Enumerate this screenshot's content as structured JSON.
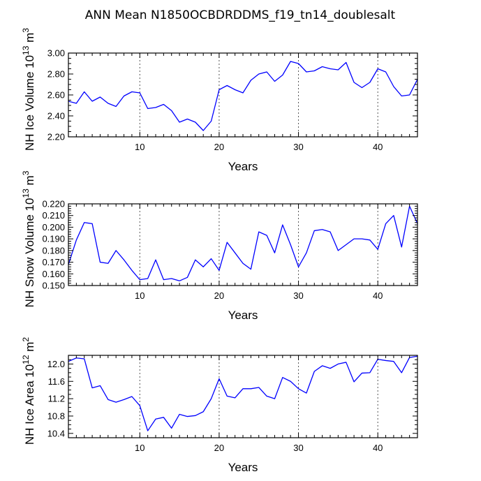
{
  "title": "ANN Mean N1850OCBDRDDMS_f19_tn14_doublesalt",
  "colors": {
    "series": "#0000ff",
    "grid": "#555555"
  },
  "chart_data": [
    {
      "type": "line",
      "title": "",
      "xlabel": "Years",
      "ylabel": "NH Ice Volume 10^13 m^3",
      "ylabel_parts": {
        "text": "NH Ice Volume 10",
        "exp": "13",
        "unit": "m",
        "unit_exp": "3"
      },
      "xlim": [
        1,
        45
      ],
      "ylim": [
        2.2,
        3.0
      ],
      "xticks": [
        10,
        20,
        30,
        40
      ],
      "yticks": [
        2.2,
        2.4,
        2.6,
        2.8,
        3.0
      ],
      "ytick_labels": [
        "2.20",
        "2.40",
        "2.60",
        "2.80",
        "3.00"
      ],
      "y_minor_step": 0.05,
      "grid_x": [
        10,
        20,
        30,
        40
      ],
      "x": [
        1,
        2,
        3,
        4,
        5,
        6,
        7,
        8,
        9,
        10,
        11,
        12,
        13,
        14,
        15,
        16,
        17,
        18,
        19,
        20,
        21,
        22,
        23,
        24,
        25,
        26,
        27,
        28,
        29,
        30,
        31,
        32,
        33,
        34,
        35,
        36,
        37,
        38,
        39,
        40,
        41,
        42,
        43,
        44,
        45
      ],
      "values": [
        2.54,
        2.52,
        2.63,
        2.54,
        2.58,
        2.52,
        2.49,
        2.59,
        2.63,
        2.62,
        2.47,
        2.48,
        2.51,
        2.45,
        2.34,
        2.37,
        2.34,
        2.26,
        2.35,
        2.65,
        2.69,
        2.65,
        2.62,
        2.74,
        2.8,
        2.82,
        2.73,
        2.79,
        2.92,
        2.9,
        2.82,
        2.83,
        2.87,
        2.85,
        2.84,
        2.91,
        2.72,
        2.67,
        2.72,
        2.85,
        2.82,
        2.68,
        2.59,
        2.6,
        2.75
      ]
    },
    {
      "type": "line",
      "title": "",
      "xlabel": "Years",
      "ylabel": "NH Snow Volume 10^13 m^3",
      "ylabel_parts": {
        "text": "NH Snow Volume 10",
        "exp": "13",
        "unit": "m",
        "unit_exp": "3"
      },
      "xlim": [
        1,
        45
      ],
      "ylim": [
        0.15,
        0.22
      ],
      "xticks": [
        10,
        20,
        30,
        40
      ],
      "yticks": [
        0.15,
        0.16,
        0.17,
        0.18,
        0.19,
        0.2,
        0.21,
        0.22
      ],
      "ytick_labels": [
        "0.150",
        "0.160",
        "0.170",
        "0.180",
        "0.190",
        "0.200",
        "0.210",
        "0.220"
      ],
      "y_minor_step": 0.002,
      "grid_x": [
        10,
        20,
        30,
        40
      ],
      "x": [
        1,
        2,
        3,
        4,
        5,
        6,
        7,
        8,
        9,
        10,
        11,
        12,
        13,
        14,
        15,
        16,
        17,
        18,
        19,
        20,
        21,
        22,
        23,
        24,
        25,
        26,
        27,
        28,
        29,
        30,
        31,
        32,
        33,
        34,
        35,
        36,
        37,
        38,
        39,
        40,
        41,
        42,
        43,
        44,
        45
      ],
      "values": [
        0.168,
        0.189,
        0.204,
        0.203,
        0.17,
        0.169,
        0.18,
        0.172,
        0.163,
        0.155,
        0.156,
        0.172,
        0.155,
        0.156,
        0.154,
        0.157,
        0.172,
        0.166,
        0.173,
        0.163,
        0.187,
        0.178,
        0.169,
        0.164,
        0.196,
        0.193,
        0.178,
        0.202,
        0.185,
        0.166,
        0.178,
        0.197,
        0.198,
        0.196,
        0.18,
        0.185,
        0.19,
        0.19,
        0.189,
        0.181,
        0.203,
        0.21,
        0.183,
        0.218,
        0.203
      ]
    },
    {
      "type": "line",
      "title": "",
      "xlabel": "Years",
      "ylabel": "NH Ice Area 10^12 m^2",
      "ylabel_parts": {
        "text": "NH Ice Area 10",
        "exp": "12",
        "unit": "m",
        "unit_exp": "2"
      },
      "xlim": [
        1,
        45
      ],
      "ylim": [
        10.3,
        12.2
      ],
      "xticks": [
        10,
        20,
        30,
        40
      ],
      "yticks": [
        10.4,
        10.8,
        11.2,
        11.6,
        12.0
      ],
      "ytick_labels": [
        "10.4",
        "10.8",
        "11.2",
        "11.6",
        "12.0"
      ],
      "y_minor_step": 0.1,
      "grid_x": [
        10,
        20,
        30,
        40
      ],
      "x": [
        1,
        2,
        3,
        4,
        5,
        6,
        7,
        8,
        9,
        10,
        11,
        12,
        13,
        14,
        15,
        16,
        17,
        18,
        19,
        20,
        21,
        22,
        23,
        24,
        25,
        26,
        27,
        28,
        29,
        30,
        31,
        32,
        33,
        34,
        35,
        36,
        37,
        38,
        39,
        40,
        41,
        42,
        43,
        44,
        45
      ],
      "values": [
        12.06,
        12.14,
        12.12,
        11.45,
        11.5,
        11.18,
        11.12,
        11.18,
        11.25,
        11.04,
        10.46,
        10.73,
        10.77,
        10.52,
        10.84,
        10.79,
        10.81,
        10.9,
        11.2,
        11.66,
        11.26,
        11.22,
        11.43,
        11.43,
        11.46,
        11.26,
        11.2,
        11.69,
        11.6,
        11.43,
        11.33,
        11.83,
        11.96,
        11.9,
        12.0,
        12.04,
        11.59,
        11.79,
        11.8,
        12.11,
        12.08,
        12.06,
        11.8,
        12.15,
        12.18
      ]
    }
  ]
}
